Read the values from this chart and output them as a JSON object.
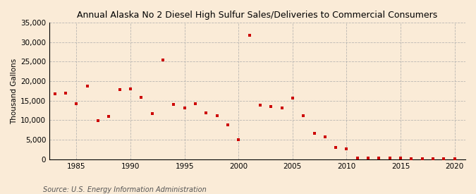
{
  "title": "Annual Alaska No 2 Diesel High Sulfur Sales/Deliveries to Commercial Consumers",
  "ylabel": "Thousand Gallons",
  "background_color": "#faebd7",
  "marker_color": "#cc0000",
  "marker": "s",
  "marker_size": 3.5,
  "source_text": "Source: U.S. Energy Information Administration",
  "xlim": [
    1982.5,
    2021
  ],
  "ylim": [
    0,
    35000
  ],
  "xticks": [
    1985,
    1990,
    1995,
    2000,
    2005,
    2010,
    2015,
    2020
  ],
  "yticks": [
    0,
    5000,
    10000,
    15000,
    20000,
    25000,
    30000,
    35000
  ],
  "years": [
    1983,
    1984,
    1985,
    1986,
    1987,
    1988,
    1989,
    1990,
    1991,
    1992,
    1993,
    1994,
    1995,
    1996,
    1997,
    1998,
    1999,
    2000,
    2001,
    2002,
    2003,
    2004,
    2005,
    2006,
    2007,
    2008,
    2009,
    2010,
    2011,
    2012,
    2013,
    2014,
    2015,
    2016,
    2017,
    2018,
    2019,
    2020
  ],
  "values": [
    16700,
    17000,
    14200,
    18700,
    9900,
    11000,
    17900,
    18000,
    15900,
    11800,
    25400,
    14000,
    13100,
    14200,
    11900,
    11100,
    8800,
    5100,
    31800,
    13800,
    13500,
    13200,
    15700,
    11100,
    6600,
    5800,
    3000,
    2700,
    300,
    400,
    400,
    300,
    400,
    200,
    200,
    200,
    200,
    100
  ]
}
